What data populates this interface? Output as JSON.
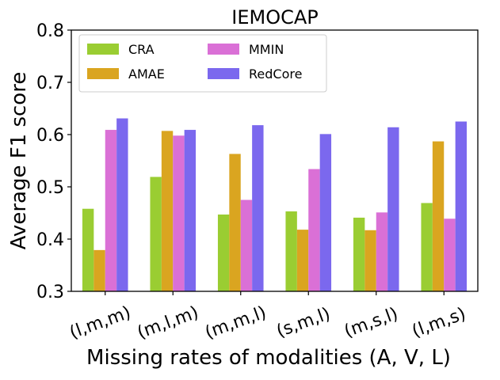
{
  "chart_data": {
    "type": "bar",
    "title": "IEMOCAP",
    "xlabel": "Missing rates of modalities (A, V, L)",
    "ylabel": "Average F1 score",
    "ylim": [
      0.3,
      0.8
    ],
    "yticks": [
      "0.3",
      "0.4",
      "0.5",
      "0.6",
      "0.7",
      "0.8"
    ],
    "categories": [
      "(l,m,m)",
      "(m,l,m)",
      "(m,m,l)",
      "(s,m,l)",
      "(m,s,l)",
      "(l,m,s)"
    ],
    "series": [
      {
        "name": "CRA",
        "color": "#9acd32",
        "values": [
          0.458,
          0.519,
          0.447,
          0.453,
          0.441,
          0.469
        ]
      },
      {
        "name": "AMAE",
        "color": "#daa520",
        "values": [
          0.379,
          0.607,
          0.563,
          0.418,
          0.417,
          0.587
        ]
      },
      {
        "name": "MMIN",
        "color": "#da70d6",
        "values": [
          0.609,
          0.598,
          0.475,
          0.534,
          0.451,
          0.439
        ]
      },
      {
        "name": "RedCore",
        "color": "#7b68ee",
        "values": [
          0.631,
          0.609,
          0.618,
          0.601,
          0.614,
          0.625
        ]
      }
    ],
    "legend_position": "top-left",
    "grid": false
  }
}
